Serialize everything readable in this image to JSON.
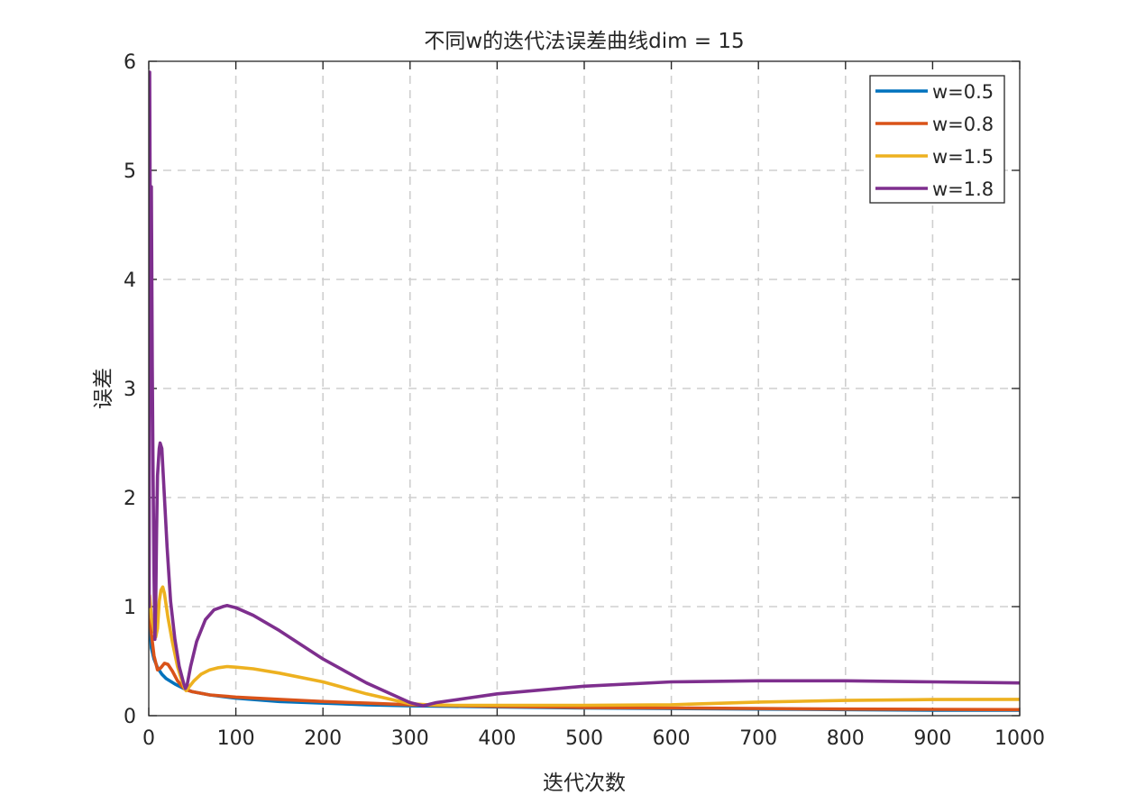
{
  "chart_data": {
    "type": "line",
    "title": "不同w的迭代法误差曲线dim = 15",
    "xlabel": "迭代次数",
    "ylabel": "误差",
    "xlim": [
      0,
      1000
    ],
    "ylim": [
      0,
      6
    ],
    "xticks": [
      "0",
      "100",
      "200",
      "300",
      "400",
      "500",
      "600",
      "700",
      "800",
      "900",
      "1000"
    ],
    "yticks": [
      "0",
      "1",
      "2",
      "3",
      "4",
      "5",
      "6"
    ],
    "grid": true,
    "legend_position": "top-right",
    "series": [
      {
        "name": "w=0.5",
        "color": "#0072BD",
        "points": [
          [
            1,
            0.85
          ],
          [
            3,
            0.62
          ],
          [
            6,
            0.52
          ],
          [
            10,
            0.44
          ],
          [
            15,
            0.38
          ],
          [
            20,
            0.34
          ],
          [
            30,
            0.29
          ],
          [
            40,
            0.25
          ],
          [
            50,
            0.22
          ],
          [
            70,
            0.19
          ],
          [
            100,
            0.16
          ],
          [
            150,
            0.13
          ],
          [
            200,
            0.115
          ],
          [
            250,
            0.1
          ],
          [
            300,
            0.09
          ],
          [
            350,
            0.085
          ],
          [
            400,
            0.08
          ],
          [
            500,
            0.07
          ],
          [
            600,
            0.065
          ],
          [
            700,
            0.06
          ],
          [
            800,
            0.055
          ],
          [
            900,
            0.05
          ],
          [
            1000,
            0.05
          ]
        ]
      },
      {
        "name": "w=0.8",
        "color": "#D95319",
        "points": [
          [
            1,
            0.95
          ],
          [
            3,
            0.75
          ],
          [
            6,
            0.55
          ],
          [
            10,
            0.42
          ],
          [
            14,
            0.44
          ],
          [
            18,
            0.48
          ],
          [
            22,
            0.47
          ],
          [
            27,
            0.41
          ],
          [
            33,
            0.32
          ],
          [
            38,
            0.27
          ],
          [
            42,
            0.24
          ],
          [
            50,
            0.22
          ],
          [
            70,
            0.19
          ],
          [
            100,
            0.17
          ],
          [
            150,
            0.15
          ],
          [
            200,
            0.13
          ],
          [
            250,
            0.115
          ],
          [
            300,
            0.1
          ],
          [
            400,
            0.085
          ],
          [
            500,
            0.075
          ],
          [
            600,
            0.07
          ],
          [
            700,
            0.065
          ],
          [
            800,
            0.06
          ],
          [
            900,
            0.058
          ],
          [
            1000,
            0.055
          ]
        ]
      },
      {
        "name": "w=1.5",
        "color": "#EDB120",
        "points": [
          [
            1,
            1.1
          ],
          [
            3,
            0.9
          ],
          [
            6,
            0.78
          ],
          [
            8,
            0.72
          ],
          [
            10,
            0.8
          ],
          [
            12,
            1.05
          ],
          [
            14,
            1.15
          ],
          [
            16,
            1.18
          ],
          [
            18,
            1.12
          ],
          [
            22,
            0.9
          ],
          [
            27,
            0.68
          ],
          [
            33,
            0.45
          ],
          [
            38,
            0.32
          ],
          [
            41,
            0.25
          ],
          [
            43,
            0.23
          ],
          [
            46,
            0.26
          ],
          [
            52,
            0.32
          ],
          [
            60,
            0.38
          ],
          [
            70,
            0.42
          ],
          [
            80,
            0.44
          ],
          [
            90,
            0.45
          ],
          [
            100,
            0.445
          ],
          [
            120,
            0.43
          ],
          [
            150,
            0.39
          ],
          [
            200,
            0.31
          ],
          [
            250,
            0.2
          ],
          [
            300,
            0.11
          ],
          [
            320,
            0.1
          ],
          [
            350,
            0.095
          ],
          [
            400,
            0.095
          ],
          [
            500,
            0.095
          ],
          [
            600,
            0.1
          ],
          [
            700,
            0.125
          ],
          [
            800,
            0.14
          ],
          [
            900,
            0.148
          ],
          [
            1000,
            0.15
          ]
        ]
      },
      {
        "name": "w=1.8",
        "color": "#7E2F8E",
        "points": [
          [
            0.5,
            1.0
          ],
          [
            1,
            5.9
          ],
          [
            2,
            4.0
          ],
          [
            3,
            4.85
          ],
          [
            4,
            3.2
          ],
          [
            5,
            2.2
          ],
          [
            6,
            1.3
          ],
          [
            7,
            0.7
          ],
          [
            8,
            1.0
          ],
          [
            9,
            1.7
          ],
          [
            10,
            2.2
          ],
          [
            12,
            2.45
          ],
          [
            13,
            2.5
          ],
          [
            15,
            2.45
          ],
          [
            18,
            2.0
          ],
          [
            21,
            1.55
          ],
          [
            25,
            1.05
          ],
          [
            30,
            0.7
          ],
          [
            35,
            0.45
          ],
          [
            40,
            0.3
          ],
          [
            42,
            0.25
          ],
          [
            44,
            0.28
          ],
          [
            48,
            0.45
          ],
          [
            55,
            0.68
          ],
          [
            65,
            0.88
          ],
          [
            75,
            0.97
          ],
          [
            85,
            1.0
          ],
          [
            90,
            1.01
          ],
          [
            100,
            0.99
          ],
          [
            120,
            0.92
          ],
          [
            150,
            0.78
          ],
          [
            200,
            0.52
          ],
          [
            250,
            0.3
          ],
          [
            300,
            0.12
          ],
          [
            315,
            0.09
          ],
          [
            330,
            0.12
          ],
          [
            400,
            0.2
          ],
          [
            500,
            0.27
          ],
          [
            600,
            0.31
          ],
          [
            700,
            0.32
          ],
          [
            800,
            0.32
          ],
          [
            900,
            0.31
          ],
          [
            1000,
            0.3
          ]
        ]
      }
    ]
  }
}
